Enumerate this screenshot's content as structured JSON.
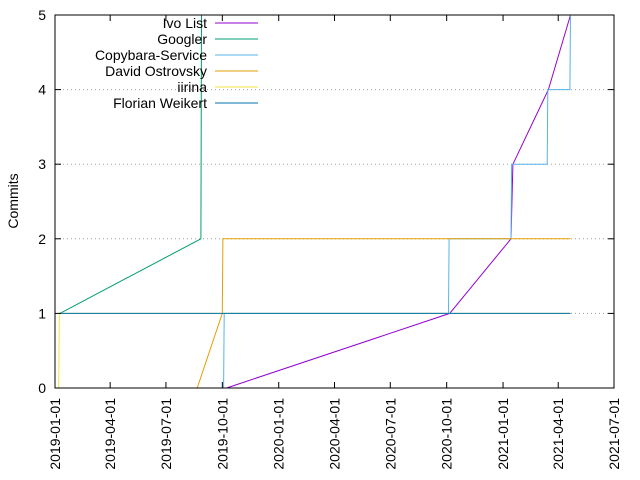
{
  "chart_data": {
    "type": "line",
    "title": "",
    "xlabel": "",
    "ylabel": "Commits",
    "xlim": [
      "2019-01-01",
      "2021-07-01"
    ],
    "ylim": [
      0,
      5
    ],
    "x_ticks": [
      "2019-01-01",
      "2019-04-01",
      "2019-07-01",
      "2019-10-01",
      "2020-01-01",
      "2020-04-01",
      "2020-07-01",
      "2020-10-01",
      "2021-01-01",
      "2021-04-01",
      "2021-07-01"
    ],
    "y_ticks": [
      "0",
      "1",
      "2",
      "3",
      "4",
      "5"
    ],
    "grid": "horizontal dotted",
    "legend_position": "top-left",
    "series": [
      {
        "name": "Ivo List",
        "color": "#9400d3",
        "points": [
          [
            "2019-10-08",
            0
          ],
          [
            "2020-10-06",
            1
          ],
          [
            "2021-01-14",
            2
          ],
          [
            "2021-01-17",
            3
          ],
          [
            "2021-03-16",
            4
          ],
          [
            "2021-04-21",
            5
          ]
        ]
      },
      {
        "name": "Googler",
        "color": "#009e73",
        "points": [
          [
            "2019-01-09",
            1
          ],
          [
            "2019-08-27",
            2
          ],
          [
            "2019-08-28",
            5
          ]
        ]
      },
      {
        "name": "Copybara-Service",
        "color": "#56b4e9",
        "points": [
          [
            "2019-10-03",
            0
          ],
          [
            "2019-10-04",
            1
          ],
          [
            "2020-10-04",
            1
          ],
          [
            "2020-10-05",
            2
          ],
          [
            "2021-01-14",
            2
          ],
          [
            "2021-01-15",
            3
          ],
          [
            "2021-03-14",
            3
          ],
          [
            "2021-03-15",
            4
          ],
          [
            "2021-04-20",
            4
          ],
          [
            "2021-04-21",
            5
          ]
        ]
      },
      {
        "name": "David Ostrovsky",
        "color": "#e69f00",
        "points": [
          [
            "2019-08-21",
            0
          ],
          [
            "2019-10-01",
            1
          ],
          [
            "2019-10-02",
            2
          ],
          [
            "2021-04-21",
            2
          ]
        ]
      },
      {
        "name": "iirina",
        "color": "#f0e442",
        "points": [
          [
            "2019-01-07",
            0
          ],
          [
            "2019-01-08",
            1
          ],
          [
            "2021-04-21",
            1
          ]
        ]
      },
      {
        "name": "Florian Weikert",
        "color": "#0072b2",
        "points": [
          [
            "2019-01-08",
            1
          ],
          [
            "2021-04-21",
            1
          ]
        ]
      }
    ]
  }
}
